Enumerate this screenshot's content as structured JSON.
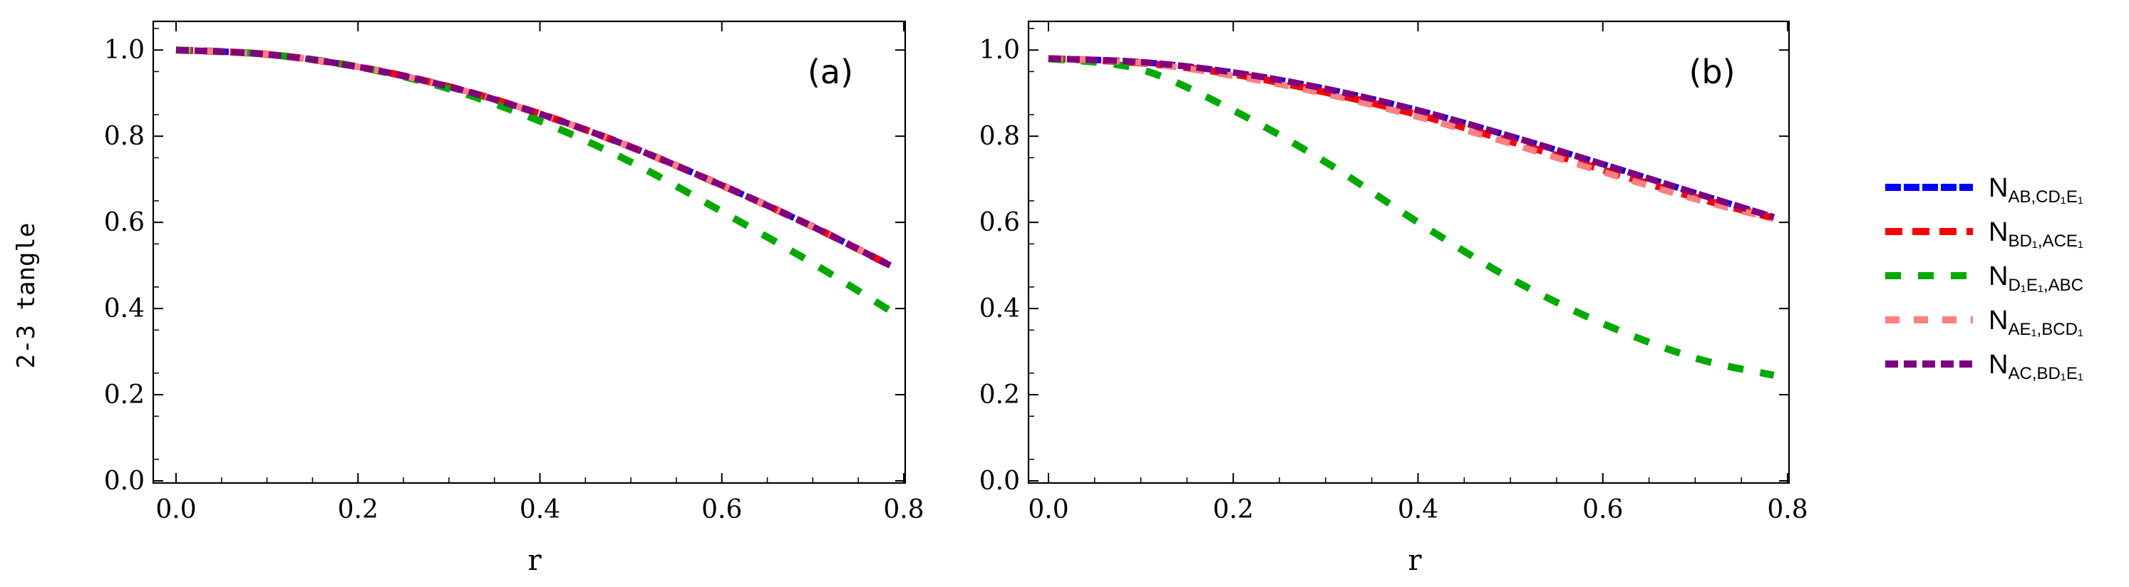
{
  "chart_data": [
    {
      "type": "line",
      "panel_label": "(a)",
      "xlabel": "r",
      "ylabel": "2-3 tangle",
      "xlim": [
        0.0,
        0.8
      ],
      "ylim": [
        0.0,
        1.05
      ],
      "xticks": [
        "0.0",
        "0.2",
        "0.4",
        "0.6",
        "0.8"
      ],
      "yticks": [
        "0.0",
        "0.2",
        "0.4",
        "0.6",
        "0.8",
        "1.0"
      ],
      "x": [
        0.0,
        0.1,
        0.2,
        0.3,
        0.4,
        0.5,
        0.6,
        0.7,
        0.785
      ],
      "series": [
        {
          "name": "N_{AB,CD1E1}",
          "values": [
            1.0,
            0.99,
            0.961,
            0.915,
            0.852,
            0.775,
            0.686,
            0.59,
            0.5
          ]
        },
        {
          "name": "N_{BD1,ACE1}",
          "values": [
            1.0,
            0.99,
            0.961,
            0.915,
            0.852,
            0.775,
            0.686,
            0.59,
            0.5
          ]
        },
        {
          "name": "N_{D1E1,ABC}",
          "values": [
            1.0,
            0.99,
            0.961,
            0.91,
            0.835,
            0.74,
            0.625,
            0.505,
            0.395
          ]
        },
        {
          "name": "N_{AE1,BCD1}",
          "values": [
            1.0,
            0.99,
            0.961,
            0.915,
            0.852,
            0.775,
            0.686,
            0.59,
            0.5
          ]
        },
        {
          "name": "N_{AC,BD1E1}",
          "values": [
            1.0,
            0.99,
            0.961,
            0.915,
            0.852,
            0.775,
            0.686,
            0.59,
            0.5
          ]
        }
      ]
    },
    {
      "type": "line",
      "panel_label": "(b)",
      "xlabel": "r",
      "ylabel": "",
      "xlim": [
        0.0,
        0.8
      ],
      "ylim": [
        0.0,
        1.05
      ],
      "xticks": [
        "0.0",
        "0.2",
        "0.4",
        "0.6",
        "0.8"
      ],
      "yticks": [
        "0.0",
        "0.2",
        "0.4",
        "0.6",
        "0.8",
        "1.0"
      ],
      "x": [
        0.0,
        0.1,
        0.2,
        0.3,
        0.4,
        0.5,
        0.6,
        0.7,
        0.785
      ],
      "series": [
        {
          "name": "N_{AB,CD1E1}",
          "values": [
            0.98,
            0.972,
            0.948,
            0.91,
            0.86,
            0.8,
            0.735,
            0.668,
            0.612
          ]
        },
        {
          "name": "N_{BD1,ACE1}",
          "values": [
            0.98,
            0.97,
            0.944,
            0.902,
            0.85,
            0.788,
            0.722,
            0.658,
            0.61
          ]
        },
        {
          "name": "N_{D1E1,ABC}",
          "values": [
            0.98,
            0.955,
            0.86,
            0.74,
            0.6,
            0.47,
            0.365,
            0.285,
            0.245
          ]
        },
        {
          "name": "N_{AE1,BCD1}",
          "values": [
            0.98,
            0.97,
            0.94,
            0.898,
            0.845,
            0.783,
            0.717,
            0.654,
            0.608
          ]
        },
        {
          "name": "N_{AC,BD1E1}",
          "values": [
            0.98,
            0.972,
            0.948,
            0.91,
            0.86,
            0.8,
            0.735,
            0.668,
            0.612
          ]
        }
      ]
    }
  ],
  "legend": [
    {
      "main": "N",
      "sub": "AB,CD₁E₁",
      "color": "#0000ff",
      "style": "dense"
    },
    {
      "main": "N",
      "sub": "BD₁,ACE₁",
      "color": "#ff0000",
      "style": "dash"
    },
    {
      "main": "N",
      "sub": "D₁E₁,ABC",
      "color": "#00aa00",
      "style": "wide"
    },
    {
      "main": "N",
      "sub": "AE₁,BCD₁",
      "color": "#ff8080",
      "style": "sparse"
    },
    {
      "main": "N",
      "sub": "AC,BD₁E₁",
      "color": "#800080",
      "style": "medium"
    }
  ],
  "colors": {
    "blue": "#0000ff",
    "red": "#ff0000",
    "green": "#00aa00",
    "pink": "#ff8080",
    "purple": "#800080"
  }
}
